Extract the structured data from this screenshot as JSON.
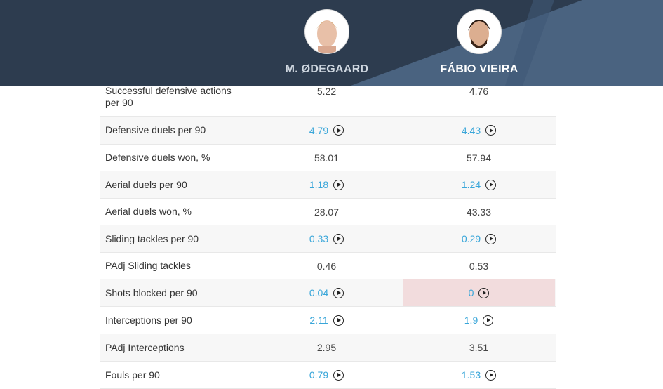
{
  "players": [
    {
      "name": "M. ØDEGAARD"
    },
    {
      "name": "FÁBIO VIEIRA"
    }
  ],
  "colors": {
    "header_bg": "#2d3c4f",
    "header_accent": "#4a6380",
    "link": "#39a6d9",
    "worse_highlight": "#f2dcdd"
  },
  "rows": [
    {
      "label": "Successful defensive actions per 90",
      "values": [
        "5.22",
        "4.76"
      ],
      "video": false
    },
    {
      "label": "Defensive duels per 90",
      "values": [
        "4.79",
        "4.43"
      ],
      "video": true
    },
    {
      "label": "Defensive duels won, %",
      "values": [
        "58.01",
        "57.94"
      ],
      "video": false
    },
    {
      "label": "Aerial duels per 90",
      "values": [
        "1.18",
        "1.24"
      ],
      "video": true
    },
    {
      "label": "Aerial duels won, %",
      "values": [
        "28.07",
        "43.33"
      ],
      "video": false
    },
    {
      "label": "Sliding tackles per 90",
      "values": [
        "0.33",
        "0.29"
      ],
      "video": true
    },
    {
      "label": "PAdj Sliding tackles",
      "values": [
        "0.46",
        "0.53"
      ],
      "video": false
    },
    {
      "label": "Shots blocked per 90",
      "values": [
        "0.04",
        "0"
      ],
      "video": true,
      "highlight": 1
    },
    {
      "label": "Interceptions per 90",
      "values": [
        "2.11",
        "1.9"
      ],
      "video": true
    },
    {
      "label": "PAdj Interceptions",
      "values": [
        "2.95",
        "3.51"
      ],
      "video": false
    },
    {
      "label": "Fouls per 90",
      "values": [
        "0.79",
        "1.53"
      ],
      "video": true
    }
  ]
}
